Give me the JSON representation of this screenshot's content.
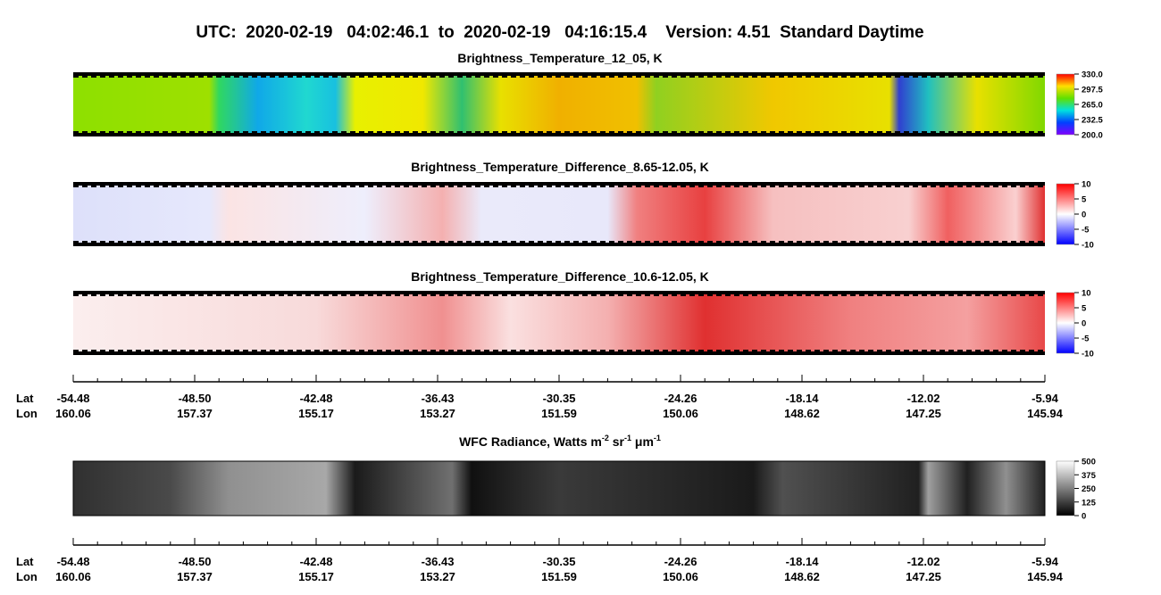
{
  "title": "UTC:  2020-02-19   04:02:46.1  to  2020-02-19   04:16:15.4    Version: 4.51  Standard Daytime",
  "panels": [
    {
      "title": "Brightness_Temperature_12_05, K",
      "range": [
        200,
        330
      ],
      "ticks": [
        {
          "value": 330,
          "label": "330.0"
        },
        {
          "value": 297.5,
          "label": "297.5"
        },
        {
          "value": 265,
          "label": "265.0"
        },
        {
          "value": 232.5,
          "label": "232.5"
        },
        {
          "value": 200,
          "label": "200.0"
        }
      ]
    },
    {
      "title": "Brightness_Temperature_Difference_8.65-12.05, K",
      "range": [
        -10,
        10
      ],
      "ticks": [
        10,
        5,
        0,
        -5,
        -10
      ]
    },
    {
      "title": "Brightness_Temperature_Difference_10.6-12.05, K",
      "range": [
        -10,
        10
      ],
      "ticks": [
        10,
        5,
        0,
        -5,
        -10
      ]
    },
    {
      "title_parts": [
        "WFC Radiance, Watts m",
        "-2",
        " sr",
        "-1",
        " μm",
        "-1"
      ],
      "range": [
        0,
        500
      ],
      "ticks": [
        500,
        375,
        250,
        125,
        0
      ]
    }
  ],
  "axis": {
    "lat_label": "Lat",
    "lon_label": "Lon",
    "lat": [
      "-54.48",
      "-48.50",
      "-42.48",
      "-36.43",
      "-30.35",
      "-24.26",
      "-18.14",
      "-12.02",
      "-5.94"
    ],
    "lon": [
      "160.06",
      "157.37",
      "155.17",
      "153.27",
      "151.59",
      "150.06",
      "148.62",
      "147.25",
      "145.94"
    ]
  }
}
